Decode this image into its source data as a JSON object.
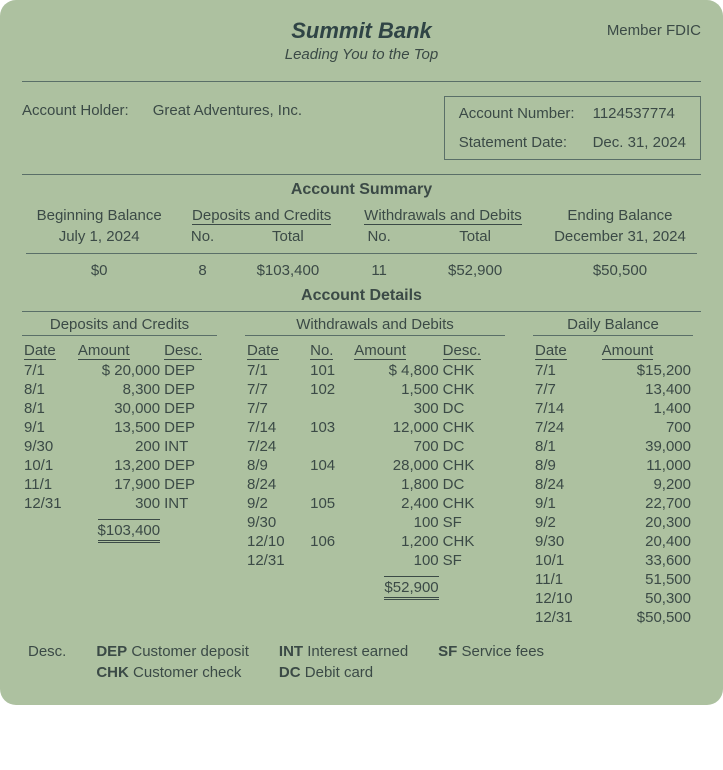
{
  "header": {
    "bank_name": "Summit Bank",
    "tagline": "Leading You to the Top",
    "fdic": "Member FDIC"
  },
  "account": {
    "holder_label": "Account Holder:",
    "holder": "Great Adventures, Inc.",
    "number_label": "Account Number:",
    "number": "1124537774",
    "date_label": "Statement Date:",
    "date": "Dec. 31, 2024"
  },
  "summary": {
    "title": "Account Summary",
    "h_begin": "Beginning Balance",
    "h_dep": "Deposits and Credits",
    "h_wd": "Withdrawals and Debits",
    "h_end": "Ending Balance",
    "begin_date": "July 1, 2024",
    "dep_no_label": "No.",
    "dep_total_label": "Total",
    "wd_no_label": "No.",
    "wd_total_label": "Total",
    "end_date": "December 31, 2024",
    "begin_val": "$0",
    "dep_no": "8",
    "dep_total": "$103,400",
    "wd_no": "11",
    "wd_total": "$52,900",
    "end_val": "$50,500"
  },
  "details": {
    "title": "Account Details",
    "dep_title": "Deposits and Credits",
    "wd_title": "Withdrawals and Debits",
    "bal_title": "Daily Balance",
    "col_date": "Date",
    "col_amount": "Amount",
    "col_desc": "Desc.",
    "col_no": "No.",
    "deposits": [
      {
        "date": "7/1",
        "amount": "$ 20,000",
        "desc": "DEP"
      },
      {
        "date": "8/1",
        "amount": "8,300",
        "desc": "DEP"
      },
      {
        "date": "8/1",
        "amount": "30,000",
        "desc": "DEP"
      },
      {
        "date": "9/1",
        "amount": "13,500",
        "desc": "DEP"
      },
      {
        "date": "9/30",
        "amount": "200",
        "desc": "INT"
      },
      {
        "date": "10/1",
        "amount": "13,200",
        "desc": "DEP"
      },
      {
        "date": "11/1",
        "amount": "17,900",
        "desc": "DEP"
      },
      {
        "date": "12/31",
        "amount": "300",
        "desc": "INT"
      }
    ],
    "dep_total": "$103,400",
    "withdrawals": [
      {
        "date": "7/1",
        "no": "101",
        "amount": "$ 4,800",
        "desc": "CHK"
      },
      {
        "date": "7/7",
        "no": "102",
        "amount": "1,500",
        "desc": "CHK"
      },
      {
        "date": "7/7",
        "no": "",
        "amount": "300",
        "desc": "DC"
      },
      {
        "date": "7/14",
        "no": "103",
        "amount": "12,000",
        "desc": "CHK"
      },
      {
        "date": "7/24",
        "no": "",
        "amount": "700",
        "desc": "DC"
      },
      {
        "date": "8/9",
        "no": "104",
        "amount": "28,000",
        "desc": "CHK"
      },
      {
        "date": "8/24",
        "no": "",
        "amount": "1,800",
        "desc": "DC"
      },
      {
        "date": "9/2",
        "no": "105",
        "amount": "2,400",
        "desc": "CHK"
      },
      {
        "date": "9/30",
        "no": "",
        "amount": "100",
        "desc": "SF"
      },
      {
        "date": "12/10",
        "no": "106",
        "amount": "1,200",
        "desc": "CHK"
      },
      {
        "date": "12/31",
        "no": "",
        "amount": "100",
        "desc": "SF"
      }
    ],
    "wd_total": "$52,900",
    "balances": [
      {
        "date": "7/1",
        "amount": "$15,200"
      },
      {
        "date": "7/7",
        "amount": "13,400"
      },
      {
        "date": "7/14",
        "amount": "1,400"
      },
      {
        "date": "7/24",
        "amount": "700"
      },
      {
        "date": "8/1",
        "amount": "39,000"
      },
      {
        "date": "8/9",
        "amount": "11,000"
      },
      {
        "date": "8/24",
        "amount": "9,200"
      },
      {
        "date": "9/1",
        "amount": "22,700"
      },
      {
        "date": "9/2",
        "amount": "20,300"
      },
      {
        "date": "9/30",
        "amount": "20,400"
      },
      {
        "date": "10/1",
        "amount": "33,600"
      },
      {
        "date": "11/1",
        "amount": "51,500"
      },
      {
        "date": "12/10",
        "amount": "50,300"
      },
      {
        "date": "12/31",
        "amount": "$50,500"
      }
    ]
  },
  "legend": {
    "label": "Desc.",
    "dep": "DEP",
    "dep_t": "Customer deposit",
    "chk": "CHK",
    "chk_t": "Customer check",
    "int": "INT",
    "int_t": "Interest earned",
    "dc": "DC",
    "dc_t": "Debit card",
    "sf": "SF",
    "sf_t": "Service fees"
  }
}
